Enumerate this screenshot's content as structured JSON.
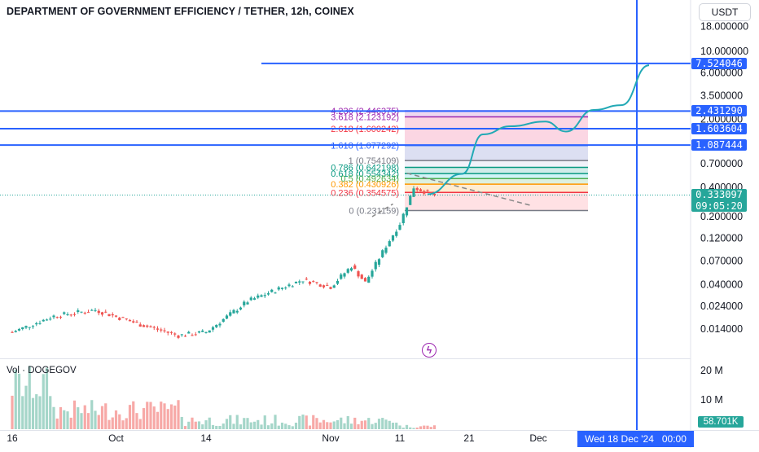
{
  "header": {
    "title": "DEPARTMENT OF GOVERNMENT EFFICIENCY / TETHER, 12h, COINEX",
    "currency": "USDT"
  },
  "colors": {
    "up": "#26a69a",
    "down": "#ef5350",
    "hline": "#2962ff",
    "forecast": "#22a9b5",
    "trend": "#888888"
  },
  "chart_data": {
    "type": "candlestick",
    "scale": "log",
    "y_ticks": [
      "18.000000",
      "10.000000",
      "6.000000",
      "3.500000",
      "2.000000",
      "0.700000",
      "0.400000",
      "0.200000",
      "0.120000",
      "0.070000",
      "0.040000",
      "0.024000",
      "0.014000"
    ],
    "y_tick_values": [
      18,
      10,
      6,
      3.5,
      2,
      0.7,
      0.4,
      0.2,
      0.12,
      0.07,
      0.04,
      0.024,
      0.014
    ],
    "x_ticks": [
      "16",
      "Oct",
      "14",
      "Nov",
      "11",
      "21",
      "Dec"
    ],
    "approx_close_path": [
      {
        "x": "Sep 16",
        "y": 0.013
      },
      {
        "x": "Sep 22",
        "y": 0.019
      },
      {
        "x": "Sep 28",
        "y": 0.022
      },
      {
        "x": "Oct 4",
        "y": 0.016
      },
      {
        "x": "Oct 10",
        "y": 0.012
      },
      {
        "x": "Oct 14",
        "y": 0.013
      },
      {
        "x": "Oct 20",
        "y": 0.027
      },
      {
        "x": "Oct 24",
        "y": 0.035
      },
      {
        "x": "Oct 28",
        "y": 0.045
      },
      {
        "x": "Nov 1",
        "y": 0.038
      },
      {
        "x": "Nov 4",
        "y": 0.062
      },
      {
        "x": "Nov 6",
        "y": 0.042
      },
      {
        "x": "Nov 9",
        "y": 0.1
      },
      {
        "x": "Nov 11",
        "y": 0.17
      },
      {
        "x": "Nov 13",
        "y": 0.4
      },
      {
        "x": "Nov 16",
        "y": 0.333
      }
    ],
    "horizontal_lines": [
      {
        "value": 7.524046,
        "label": "7.524046"
      },
      {
        "value": 2.43129,
        "label": "2.431290"
      },
      {
        "value": 1.603604,
        "label": "1.603604"
      },
      {
        "value": 1.087444,
        "label": "1.087444"
      }
    ],
    "last_price": {
      "label": "0.333097",
      "countdown": "09:05:20"
    },
    "fibonacci": [
      {
        "ratio": "4.236",
        "value": "2.446375",
        "label": "4.236 (2.446375)",
        "color": "#9c27b0"
      },
      {
        "ratio": "3.618",
        "value": "2.123192",
        "label": "3.618 (2.123192)",
        "color": "#9c27b0"
      },
      {
        "ratio": "2.618",
        "value": "1.600242",
        "label": "2.618 (1.600242)",
        "color": "#f23645"
      },
      {
        "ratio": "1.618",
        "value": "1.077292",
        "label": "1.618 (1.077292)",
        "color": "#2962ff"
      },
      {
        "ratio": "1",
        "value": "0.754109",
        "label": "1 (0.754109)",
        "color": "#787b86"
      },
      {
        "ratio": "0.786",
        "value": "0.642198",
        "label": "0.786 (0.642198)",
        "color": "#089981"
      },
      {
        "ratio": "0.618",
        "value": "0.554342",
        "label": "0.618 (0.554342)",
        "color": "#089981"
      },
      {
        "ratio": "0.5",
        "value": "0.492634",
        "label": "0.5 (0.492634)",
        "color": "#4caf50"
      },
      {
        "ratio": "0.382",
        "value": "0.430926",
        "label": "0.382 (0.430926)",
        "color": "#ff9800"
      },
      {
        "ratio": "0.236",
        "value": "0.354575",
        "label": "0.236 (0.354575)",
        "color": "#f23645"
      },
      {
        "ratio": "0",
        "value": "0.231159",
        "label": "0 (0.231159)",
        "color": "#787b86"
      }
    ],
    "forecast_path": [
      {
        "x": "Nov 15",
        "y": 0.34
      },
      {
        "x": "Nov 20",
        "y": 0.55
      },
      {
        "x": "Nov 23",
        "y": 1.4
      },
      {
        "x": "Nov 27",
        "y": 1.7
      },
      {
        "x": "Dec 2",
        "y": 1.9
      },
      {
        "x": "Dec 5",
        "y": 1.5
      },
      {
        "x": "Dec 9",
        "y": 2.5
      },
      {
        "x": "Dec 13",
        "y": 2.8
      },
      {
        "x": "Dec 17",
        "y": 7.2
      }
    ],
    "volume": {
      "label": "Vol · DOGEGOV",
      "ticks": [
        "20 M",
        "10 M"
      ],
      "tick_values": [
        20,
        10
      ],
      "last": "58.701K"
    },
    "crosshair_date": "Wed 18 Dec '24   00:00"
  }
}
